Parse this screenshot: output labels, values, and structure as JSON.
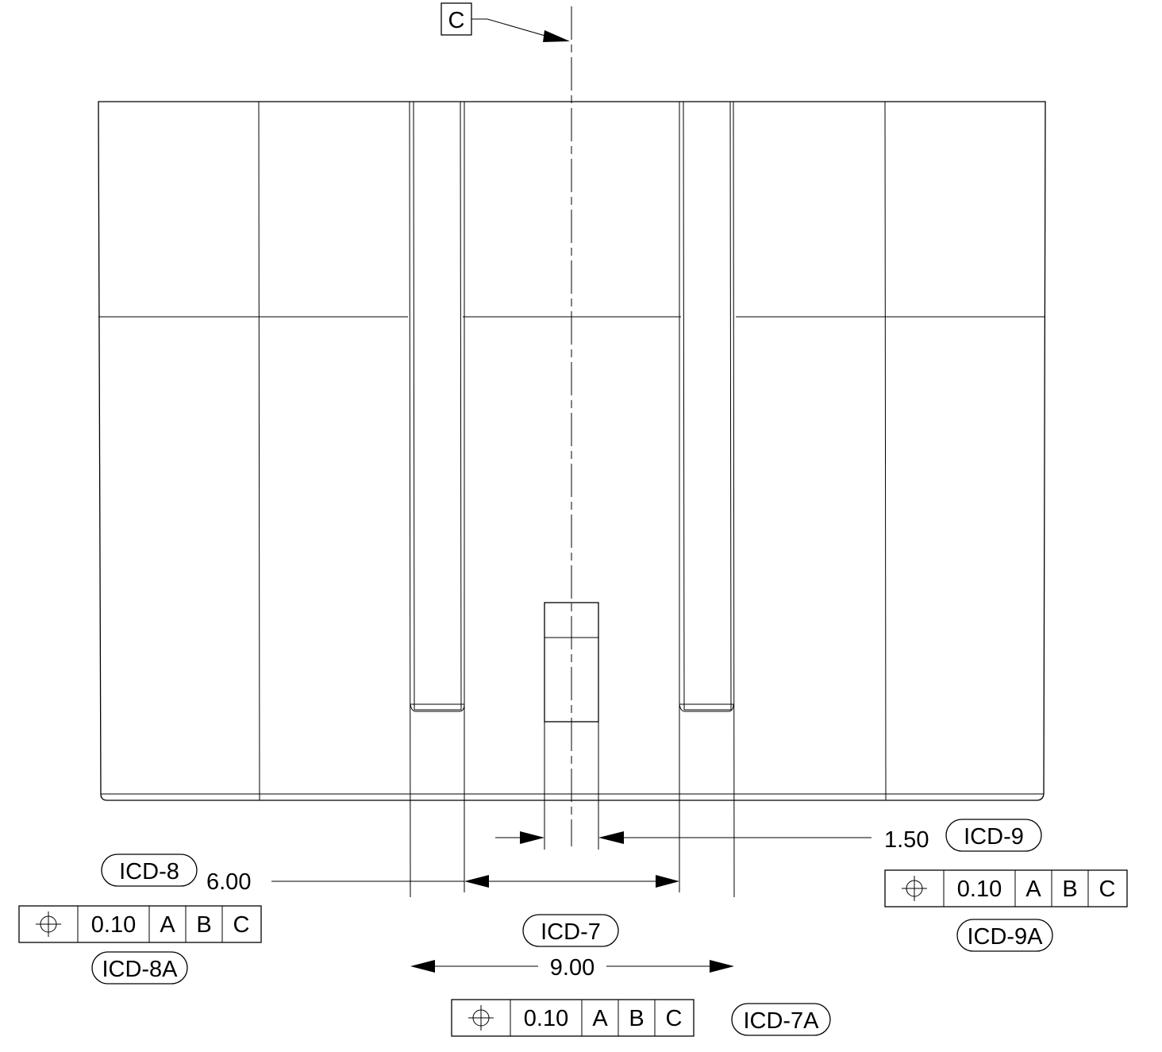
{
  "datum_label": "C",
  "dimensions": {
    "d150": "1.50",
    "d600": "6.00",
    "d900": "9.00"
  },
  "balloons": {
    "icd7": "ICD-7",
    "icd7a": "ICD-7A",
    "icd8": "ICD-8",
    "icd8a": "ICD-8A",
    "icd9": "ICD-9",
    "icd9a": "ICD-9A"
  },
  "fcf_left": {
    "symbol": "position",
    "tolerance": "0.10",
    "datums": [
      "A",
      "B",
      "C"
    ]
  },
  "fcf_center": {
    "symbol": "position",
    "tolerance": "0.10",
    "datums": [
      "A",
      "B",
      "C"
    ]
  },
  "fcf_right": {
    "symbol": "position",
    "tolerance": "0.10",
    "datums": [
      "A",
      "B",
      "C"
    ]
  }
}
